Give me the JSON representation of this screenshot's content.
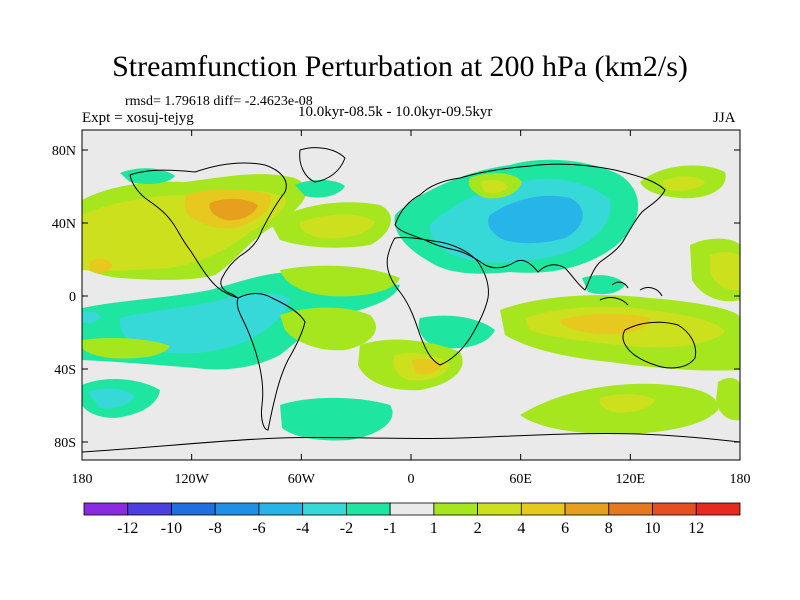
{
  "title": "Streamfunction Perturbation at 200 hPa (km2/s)",
  "stats": "rmsd= 1.79618 diff= -2.4623e-08",
  "experiment": "Expt = xosuj-tejyg",
  "period": "10.0kyr-08.5k - 10.0kyr-09.5kyr",
  "season": "JJA",
  "lat_labels": [
    "80N",
    "40N",
    "0",
    "40S",
    "80S"
  ],
  "lon_labels": [
    "180",
    "120W",
    "60W",
    "0",
    "60E",
    "120E",
    "180"
  ],
  "colorbar": {
    "labels": [
      "-12",
      "-10",
      "-8",
      "-6",
      "-4",
      "-2",
      "-1",
      "1",
      "2",
      "4",
      "6",
      "8",
      "10",
      "12"
    ],
    "colors": [
      "#8a2be2",
      "#4b3fe0",
      "#1e6fe0",
      "#1e90e8",
      "#27b4e8",
      "#36d8d8",
      "#1ee6a0",
      "#eaeaea",
      "#a6e61e",
      "#cce01e",
      "#e6c81e",
      "#e6a01e",
      "#e6781e",
      "#e6501e",
      "#e62a1e"
    ]
  },
  "map": {
    "background": "#eaeaea",
    "coast_color": "#000000"
  }
}
